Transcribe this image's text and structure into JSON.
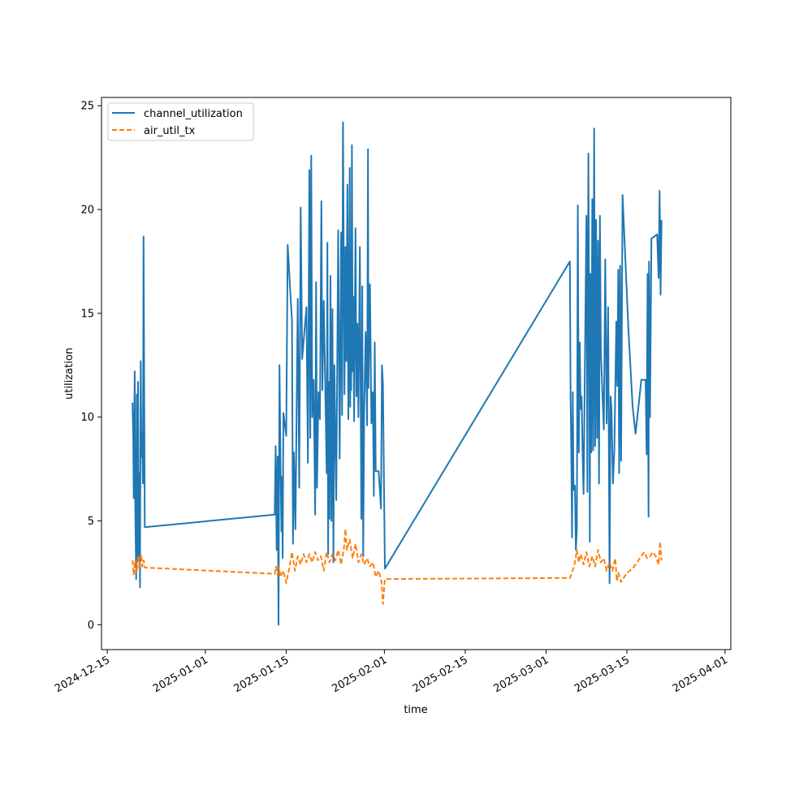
{
  "chart_data": {
    "type": "line",
    "xlabel": "time",
    "ylabel": "utilization",
    "xlim": [
      "2024-12-14",
      "2025-04-02"
    ],
    "ylim": [
      -1.2,
      25.4
    ],
    "x_ticks": [
      "2024-12-15",
      "2025-01-01",
      "2025-01-15",
      "2025-02-01",
      "2025-02-15",
      "2025-03-01",
      "2025-03-15",
      "2025-04-01"
    ],
    "y_ticks": [
      0,
      5,
      10,
      15,
      20,
      25
    ],
    "legend_position": "top-left",
    "grid": false,
    "series": [
      {
        "name": "channel_utilization",
        "color": "#1f77b4",
        "style": "solid",
        "points": [
          [
            "2024-12-19T09:00",
            10.7
          ],
          [
            "2024-12-19T12:00",
            9.0
          ],
          [
            "2024-12-19T14:00",
            6.1
          ],
          [
            "2024-12-19T18:00",
            12.2
          ],
          [
            "2024-12-19T20:00",
            6.0
          ],
          [
            "2024-12-20T00:00",
            2.2
          ],
          [
            "2024-12-20T03:00",
            11.1
          ],
          [
            "2024-12-20T06:00",
            3.0
          ],
          [
            "2024-12-20T08:00",
            11.7
          ],
          [
            "2024-12-20T11:00",
            3.1
          ],
          [
            "2024-12-20T14:00",
            7.3
          ],
          [
            "2024-12-20T16:00",
            1.8
          ],
          [
            "2024-12-20T19:00",
            12.7
          ],
          [
            "2024-12-20T22:00",
            8.1
          ],
          [
            "2024-12-21T01:00",
            9.2
          ],
          [
            "2024-12-21T04:00",
            6.8
          ],
          [
            "2024-12-21T07:00",
            18.7
          ],
          [
            "2024-12-21T12:00",
            4.7
          ],
          [
            "2025-01-13T00:00",
            5.3
          ],
          [
            "2025-01-13T04:00",
            8.6
          ],
          [
            "2025-01-13T08:00",
            3.6
          ],
          [
            "2025-01-13T12:00",
            8.1
          ],
          [
            "2025-01-13T16:00",
            0.0
          ],
          [
            "2025-01-13T20:00",
            12.5
          ],
          [
            "2025-01-14T00:00",
            8.0
          ],
          [
            "2025-01-14T04:00",
            4.5
          ],
          [
            "2025-01-14T06:00",
            7.1
          ],
          [
            "2025-01-14T09:00",
            3.2
          ],
          [
            "2025-01-14T12:00",
            10.2
          ],
          [
            "2025-01-15T00:00",
            9.1
          ],
          [
            "2025-01-15T06:00",
            18.3
          ],
          [
            "2025-01-16T00:00",
            14.6
          ],
          [
            "2025-01-16T04:00",
            3.9
          ],
          [
            "2025-01-16T08:00",
            8.3
          ],
          [
            "2025-01-16T14:00",
            4.6
          ],
          [
            "2025-01-17T00:00",
            15.7
          ],
          [
            "2025-01-17T06:00",
            6.6
          ],
          [
            "2025-01-17T12:00",
            20.1
          ],
          [
            "2025-01-17T18:00",
            12.8
          ],
          [
            "2025-01-18T12:00",
            15.3
          ],
          [
            "2025-01-18T18:00",
            7.8
          ],
          [
            "2025-01-19T00:00",
            21.9
          ],
          [
            "2025-01-19T04:00",
            9.0
          ],
          [
            "2025-01-19T08:00",
            22.6
          ],
          [
            "2025-01-19T12:00",
            10.0
          ],
          [
            "2025-01-19T18:00",
            11.8
          ],
          [
            "2025-01-20T00:00",
            5.3
          ],
          [
            "2025-01-20T04:00",
            16.5
          ],
          [
            "2025-01-20T08:00",
            6.6
          ],
          [
            "2025-01-20T14:00",
            11.2
          ],
          [
            "2025-01-20T20:00",
            9.9
          ],
          [
            "2025-01-21T02:00",
            20.4
          ],
          [
            "2025-01-21T06:00",
            11.3
          ],
          [
            "2025-01-21T12:00",
            15.6
          ],
          [
            "2025-01-21T18:00",
            11.6
          ],
          [
            "2025-01-22T00:00",
            7.3
          ],
          [
            "2025-01-22T03:00",
            18.4
          ],
          [
            "2025-01-22T06:00",
            3.4
          ],
          [
            "2025-01-22T09:00",
            11.7
          ],
          [
            "2025-01-22T12:00",
            5.1
          ],
          [
            "2025-01-22T16:00",
            16.8
          ],
          [
            "2025-01-22T20:00",
            5.0
          ],
          [
            "2025-01-23T00:00",
            15.2
          ],
          [
            "2025-01-23T04:00",
            3.0
          ],
          [
            "2025-01-23T08:00",
            12.5
          ],
          [
            "2025-01-23T12:00",
            9.0
          ],
          [
            "2025-01-23T16:00",
            6.0
          ],
          [
            "2025-01-24T00:00",
            19.0
          ],
          [
            "2025-01-24T06:00",
            8.0
          ],
          [
            "2025-01-24T12:00",
            18.9
          ],
          [
            "2025-01-24T16:00",
            10.1
          ],
          [
            "2025-01-24T20:00",
            24.2
          ],
          [
            "2025-01-25T02:00",
            11.1
          ],
          [
            "2025-01-25T06:00",
            18.2
          ],
          [
            "2025-01-25T10:00",
            12.7
          ],
          [
            "2025-01-25T14:00",
            21.2
          ],
          [
            "2025-01-25T18:00",
            9.9
          ],
          [
            "2025-01-26T00:00",
            22.0
          ],
          [
            "2025-01-26T02:00",
            10.5
          ],
          [
            "2025-01-26T04:00",
            16.1
          ],
          [
            "2025-01-26T06:00",
            11.3
          ],
          [
            "2025-01-26T09:00",
            23.1
          ],
          [
            "2025-01-26T12:00",
            12.2
          ],
          [
            "2025-01-26T15:00",
            15.8
          ],
          [
            "2025-01-26T18:00",
            9.8
          ],
          [
            "2025-01-27T00:00",
            19.1
          ],
          [
            "2025-01-27T04:00",
            11.0
          ],
          [
            "2025-01-27T08:00",
            14.5
          ],
          [
            "2025-01-27T12:00",
            10.0
          ],
          [
            "2025-01-27T18:00",
            18.2
          ],
          [
            "2025-01-28T00:00",
            5.1
          ],
          [
            "2025-01-28T04:00",
            16.3
          ],
          [
            "2025-01-28T08:00",
            3.3
          ],
          [
            "2025-01-28T12:00",
            10.3
          ],
          [
            "2025-01-28T18:00",
            14.1
          ],
          [
            "2025-01-29T00:00",
            9.6
          ],
          [
            "2025-01-29T04:00",
            22.9
          ],
          [
            "2025-01-29T06:00",
            11.4
          ],
          [
            "2025-01-29T12:00",
            16.4
          ],
          [
            "2025-01-29T18:00",
            9.7
          ],
          [
            "2025-01-30T00:00",
            11.2
          ],
          [
            "2025-01-30T04:00",
            6.2
          ],
          [
            "2025-01-30T08:00",
            13.6
          ],
          [
            "2025-01-30T12:00",
            7.4
          ],
          [
            "2025-01-31T00:00",
            7.4
          ],
          [
            "2025-01-31T06:00",
            6.3
          ],
          [
            "2025-01-31T10:00",
            5.6
          ],
          [
            "2025-01-31T14:00",
            12.5
          ],
          [
            "2025-01-31T18:00",
            11.6
          ],
          [
            "2025-02-01T02:00",
            2.7
          ],
          [
            "2025-03-05T03:00",
            17.5
          ],
          [
            "2025-03-05T06:00",
            10.9
          ],
          [
            "2025-03-05T09:00",
            8.2
          ],
          [
            "2025-03-05T12:00",
            4.2
          ],
          [
            "2025-03-05T15:00",
            11.2
          ],
          [
            "2025-03-05T18:00",
            6.5
          ],
          [
            "2025-03-06T00:00",
            6.7
          ],
          [
            "2025-03-06T04:00",
            3.6
          ],
          [
            "2025-03-06T08:00",
            4.6
          ],
          [
            "2025-03-06T12:00",
            20.2
          ],
          [
            "2025-03-06T16:00",
            8.3
          ],
          [
            "2025-03-06T20:00",
            13.6
          ],
          [
            "2025-03-07T00:00",
            10.4
          ],
          [
            "2025-03-07T04:00",
            11.0
          ],
          [
            "2025-03-07T08:00",
            8.2
          ],
          [
            "2025-03-07T12:00",
            6.3
          ],
          [
            "2025-03-08T00:00",
            19.7
          ],
          [
            "2025-03-08T04:00",
            6.4
          ],
          [
            "2025-03-08T08:00",
            22.7
          ],
          [
            "2025-03-08T12:00",
            13.0
          ],
          [
            "2025-03-08T14:00",
            4.0
          ],
          [
            "2025-03-08T16:00",
            16.9
          ],
          [
            "2025-03-08T20:00",
            8.3
          ],
          [
            "2025-03-09T00:00",
            20.5
          ],
          [
            "2025-03-09T04:00",
            8.4
          ],
          [
            "2025-03-09T08:00",
            23.9
          ],
          [
            "2025-03-09T12:00",
            8.6
          ],
          [
            "2025-03-09T16:00",
            19.5
          ],
          [
            "2025-03-09T20:00",
            9.0
          ],
          [
            "2025-03-10T00:00",
            18.5
          ],
          [
            "2025-03-10T04:00",
            6.8
          ],
          [
            "2025-03-10T08:00",
            19.7
          ],
          [
            "2025-03-10T12:00",
            13.1
          ],
          [
            "2025-03-11T00:00",
            9.4
          ],
          [
            "2025-03-11T06:00",
            17.6
          ],
          [
            "2025-03-11T12:00",
            9.7
          ],
          [
            "2025-03-11T18:00",
            15.3
          ],
          [
            "2025-03-12T00:00",
            2.0
          ],
          [
            "2025-03-12T04:00",
            11.0
          ],
          [
            "2025-03-12T08:00",
            10.4
          ],
          [
            "2025-03-12T14:00",
            6.8
          ],
          [
            "2025-03-12T20:00",
            8.4
          ],
          [
            "2025-03-13T04:00",
            14.6
          ],
          [
            "2025-03-13T08:00",
            11.5
          ],
          [
            "2025-03-13T12:00",
            17.1
          ],
          [
            "2025-03-13T16:00",
            7.3
          ],
          [
            "2025-03-13T20:00",
            17.3
          ],
          [
            "2025-03-14T00:00",
            7.9
          ],
          [
            "2025-03-14T06:00",
            20.7
          ],
          [
            "2025-03-15T06:00",
            14.3
          ],
          [
            "2025-03-16T00:00",
            10.5
          ],
          [
            "2025-03-16T12:00",
            9.2
          ],
          [
            "2025-03-17T12:00",
            11.8
          ],
          [
            "2025-03-18T06:00",
            11.8
          ],
          [
            "2025-03-18T10:00",
            8.2
          ],
          [
            "2025-03-18T14:00",
            16.9
          ],
          [
            "2025-03-18T18:00",
            5.2
          ],
          [
            "2025-03-18T20:00",
            17.5
          ],
          [
            "2025-03-19T00:00",
            10.0
          ],
          [
            "2025-03-19T06:00",
            18.6
          ],
          [
            "2025-03-20T06:00",
            18.8
          ],
          [
            "2025-03-20T12:00",
            16.7
          ],
          [
            "2025-03-20T16:00",
            20.9
          ],
          [
            "2025-03-20T20:00",
            15.9
          ],
          [
            "2025-03-21T00:00",
            19.5
          ]
        ]
      },
      {
        "name": "air_util_tx",
        "color": "#ff7f0e",
        "style": "dashed",
        "points": [
          [
            "2024-12-19T09:00",
            3.1
          ],
          [
            "2024-12-19T14:00",
            2.4
          ],
          [
            "2024-12-19T20:00",
            3.1
          ],
          [
            "2024-12-20T02:00",
            2.5
          ],
          [
            "2024-12-20T08:00",
            3.3
          ],
          [
            "2024-12-20T14:00",
            2.7
          ],
          [
            "2024-12-20T20:00",
            3.4
          ],
          [
            "2024-12-21T02:00",
            2.8
          ],
          [
            "2024-12-21T08:00",
            3.1
          ],
          [
            "2024-12-21T12:00",
            2.75
          ],
          [
            "2025-01-13T00:00",
            2.45
          ],
          [
            "2025-01-13T06:00",
            2.8
          ],
          [
            "2025-01-13T12:00",
            2.4
          ],
          [
            "2025-01-13T18:00",
            2.8
          ],
          [
            "2025-01-14T00:00",
            2.3
          ],
          [
            "2025-01-14T12:00",
            2.6
          ],
          [
            "2025-01-15T00:00",
            2.0
          ],
          [
            "2025-01-15T12:00",
            2.7
          ],
          [
            "2025-01-16T00:00",
            3.5
          ],
          [
            "2025-01-16T12:00",
            2.6
          ],
          [
            "2025-01-17T00:00",
            3.3
          ],
          [
            "2025-01-17T12:00",
            2.9
          ],
          [
            "2025-01-18T00:00",
            3.4
          ],
          [
            "2025-01-18T12:00",
            3.0
          ],
          [
            "2025-01-19T00:00",
            3.4
          ],
          [
            "2025-01-19T12:00",
            3.0
          ],
          [
            "2025-01-20T00:00",
            3.5
          ],
          [
            "2025-01-20T12:00",
            3.1
          ],
          [
            "2025-01-21T00:00",
            3.3
          ],
          [
            "2025-01-21T12:00",
            2.6
          ],
          [
            "2025-01-22T00:00",
            3.5
          ],
          [
            "2025-01-22T12:00",
            3.0
          ],
          [
            "2025-01-23T00:00",
            3.4
          ],
          [
            "2025-01-23T12:00",
            3.1
          ],
          [
            "2025-01-24T00:00",
            3.6
          ],
          [
            "2025-01-24T12:00",
            2.9
          ],
          [
            "2025-01-25T00:00",
            3.7
          ],
          [
            "2025-01-25T06:00",
            4.6
          ],
          [
            "2025-01-25T12:00",
            3.6
          ],
          [
            "2025-01-26T00:00",
            4.1
          ],
          [
            "2025-01-26T12:00",
            3.2
          ],
          [
            "2025-01-27T00:00",
            3.9
          ],
          [
            "2025-01-27T12:00",
            3.0
          ],
          [
            "2025-01-28T00:00",
            3.4
          ],
          [
            "2025-01-28T12:00",
            2.9
          ],
          [
            "2025-01-29T00:00",
            3.2
          ],
          [
            "2025-01-29T12:00",
            2.8
          ],
          [
            "2025-01-30T00:00",
            3.0
          ],
          [
            "2025-01-30T12:00",
            2.3
          ],
          [
            "2025-01-31T00:00",
            2.6
          ],
          [
            "2025-01-31T12:00",
            2.1
          ],
          [
            "2025-01-31T18:00",
            1.0
          ],
          [
            "2025-02-01T02:00",
            2.2
          ],
          [
            "2025-03-05T03:00",
            2.25
          ],
          [
            "2025-03-05T12:00",
            2.5
          ],
          [
            "2025-03-06T00:00",
            3.0
          ],
          [
            "2025-03-06T08:00",
            3.6
          ],
          [
            "2025-03-06T16:00",
            3.0
          ],
          [
            "2025-03-07T00:00",
            3.4
          ],
          [
            "2025-03-07T12:00",
            2.9
          ],
          [
            "2025-03-08T00:00",
            3.5
          ],
          [
            "2025-03-08T12:00",
            2.8
          ],
          [
            "2025-03-09T00:00",
            3.3
          ],
          [
            "2025-03-09T12:00",
            2.8
          ],
          [
            "2025-03-10T00:00",
            3.6
          ],
          [
            "2025-03-10T12:00",
            3.0
          ],
          [
            "2025-03-11T00:00",
            3.2
          ],
          [
            "2025-03-11T12:00",
            2.6
          ],
          [
            "2025-03-12T00:00",
            3.0
          ],
          [
            "2025-03-12T12:00",
            2.6
          ],
          [
            "2025-03-13T00:00",
            3.2
          ],
          [
            "2025-03-13T06:00",
            2.1
          ],
          [
            "2025-03-13T12:00",
            2.5
          ],
          [
            "2025-03-14T00:00",
            2.05
          ],
          [
            "2025-03-15T00:00",
            2.5
          ],
          [
            "2025-03-16T00:00",
            2.7
          ],
          [
            "2025-03-17T00:00",
            3.1
          ],
          [
            "2025-03-18T00:00",
            3.5
          ],
          [
            "2025-03-18T12:00",
            3.2
          ],
          [
            "2025-03-19T00:00",
            3.3
          ],
          [
            "2025-03-19T12:00",
            3.5
          ],
          [
            "2025-03-20T00:00",
            3.3
          ],
          [
            "2025-03-20T12:00",
            2.9
          ],
          [
            "2025-03-20T18:00",
            4.0
          ],
          [
            "2025-03-21T00:00",
            3.1
          ]
        ]
      }
    ]
  }
}
